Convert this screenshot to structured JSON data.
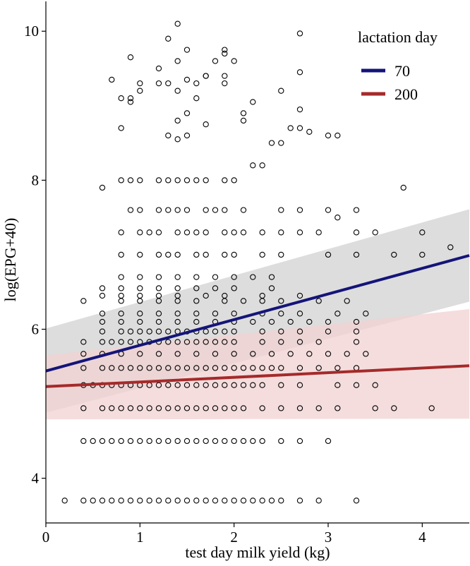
{
  "chart_data": {
    "type": "scatter",
    "title": "",
    "xlabel": "test day milk yield (kg)",
    "ylabel": "log(EPG+40)",
    "xlim": [
      0,
      4.5
    ],
    "ylim": [
      3.4,
      10.4
    ],
    "x_ticks": [
      0,
      1,
      2,
      3,
      4
    ],
    "y_ticks": [
      4,
      6,
      8,
      10
    ],
    "x_tick_labels": [
      "0",
      "1",
      "2",
      "3",
      "4"
    ],
    "y_tick_labels": [
      "4",
      "6",
      "8",
      "10"
    ],
    "legend": {
      "title": "lactation day",
      "placement": "top-right",
      "entries": [
        {
          "label": "70",
          "color": "#14147a"
        },
        {
          "label": "200",
          "color": "#a52a2a"
        }
      ]
    },
    "fits": [
      {
        "name": "70",
        "color": "#14147a",
        "band_color": "#d9d9d9",
        "x": [
          0,
          4.5
        ],
        "y": [
          5.44,
          6.99
        ],
        "lower": [
          4.88,
          6.37
        ],
        "upper": [
          6.01,
          7.61
        ]
      },
      {
        "name": "200",
        "color": "#a52a2a",
        "band_color": "#f2d1d1",
        "x": [
          0,
          4.5
        ],
        "y": [
          5.23,
          5.51
        ],
        "lower": [
          4.79,
          4.8
        ],
        "upper": [
          5.65,
          6.27
        ]
      }
    ],
    "points": {
      "x": [
        0.2,
        0.4,
        0.5,
        0.6,
        0.7,
        0.8,
        0.9,
        1.0,
        1.1,
        1.2,
        1.3,
        1.4,
        1.5,
        1.6,
        1.7,
        1.8,
        1.9,
        2.0,
        2.1,
        2.2,
        2.3,
        2.4,
        2.5,
        2.7,
        2.9,
        3.3,
        0.4,
        0.5,
        0.6,
        0.7,
        0.8,
        0.9,
        1.0,
        1.1,
        1.2,
        1.3,
        1.4,
        1.5,
        1.6,
        1.7,
        1.8,
        1.9,
        2.0,
        2.1,
        2.2,
        2.3,
        2.5,
        2.7,
        3.0,
        0.4,
        0.6,
        0.7,
        0.8,
        0.9,
        1.0,
        1.1,
        1.2,
        1.3,
        1.4,
        1.5,
        1.6,
        1.7,
        1.8,
        1.9,
        2.0,
        2.1,
        2.3,
        2.5,
        2.7,
        2.9,
        3.1,
        3.5,
        3.7,
        4.1,
        0.4,
        0.5,
        0.6,
        0.7,
        0.8,
        0.9,
        1.0,
        1.1,
        1.2,
        1.3,
        1.4,
        1.5,
        1.6,
        1.7,
        1.8,
        1.9,
        2.0,
        2.1,
        2.2,
        2.3,
        2.5,
        2.7,
        3.1,
        3.3,
        3.5,
        0.4,
        0.6,
        0.7,
        0.8,
        0.9,
        1.0,
        1.1,
        1.2,
        1.3,
        1.4,
        1.5,
        1.6,
        1.7,
        1.8,
        1.9,
        2.0,
        2.1,
        2.2,
        2.3,
        2.4,
        2.5,
        2.7,
        2.9,
        3.1,
        3.3,
        0.4,
        0.6,
        0.8,
        1.0,
        1.2,
        1.4,
        1.6,
        1.8,
        2.0,
        2.2,
        2.4,
        2.6,
        2.8,
        3.0,
        3.2,
        3.4,
        0.4,
        0.6,
        0.7,
        0.8,
        0.9,
        1.0,
        1.1,
        1.2,
        1.3,
        1.4,
        1.5,
        1.6,
        1.7,
        1.8,
        1.9,
        2.0,
        2.3,
        2.5,
        2.7,
        2.9,
        3.3,
        0.6,
        0.8,
        0.9,
        1.0,
        1.1,
        1.2,
        1.3,
        1.4,
        1.5,
        1.6,
        1.7,
        1.8,
        1.9,
        2.0,
        2.3,
        2.5,
        2.7,
        3.0,
        3.3,
        0.6,
        0.8,
        1.0,
        1.2,
        1.4,
        1.6,
        1.8,
        2.0,
        2.2,
        2.4,
        2.6,
        2.8,
        3.0,
        3.3,
        0.6,
        0.8,
        1.0,
        1.2,
        1.4,
        1.6,
        1.8,
        2.0,
        2.3,
        2.5,
        2.7,
        3.1,
        3.4,
        0.4,
        0.8,
        1.0,
        1.2,
        1.4,
        1.6,
        1.9,
        2.1,
        2.3,
        2.5,
        2.9,
        3.2,
        0.6,
        0.8,
        1.0,
        1.2,
        1.4,
        1.7,
        1.9,
        2.3,
        2.7,
        0.6,
        0.8,
        1.0,
        1.2,
        1.4,
        1.6,
        1.8,
        2.0,
        2.4,
        0.8,
        1.0,
        1.2,
        1.4,
        1.6,
        1.8,
        2.0,
        2.2,
        2.4,
        0.8,
        1.0,
        1.2,
        1.3,
        1.4,
        1.6,
        1.7,
        1.9,
        2.0,
        2.3,
        2.5,
        3.0,
        3.3,
        3.7,
        4.0,
        4.3,
        0.8,
        1.0,
        1.1,
        1.2,
        1.4,
        1.5,
        1.6,
        1.7,
        1.9,
        2.0,
        2.1,
        2.3,
        2.5,
        2.7,
        2.9,
        3.1,
        3.3,
        3.5,
        4.0,
        0.9,
        1.0,
        1.2,
        1.3,
        1.4,
        1.5,
        1.7,
        1.8,
        1.9,
        2.1,
        2.5,
        2.7,
        3.0,
        3.3,
        3.8,
        0.6,
        0.8,
        0.9,
        1.0,
        1.2,
        1.3,
        1.4,
        1.5,
        1.6,
        1.7,
        1.9,
        2.0,
        2.2,
        2.3,
        2.4,
        2.5,
        2.6,
        2.7,
        3.0,
        3.1,
        0.7,
        0.8,
        0.9,
        1.0,
        1.2,
        1.3,
        1.4,
        1.5,
        1.6,
        1.7,
        1.9,
        2.1,
        2.2,
        2.5,
        2.7,
        2.8,
        0.9,
        1.0,
        1.2,
        1.3,
        1.4,
        1.5,
        1.6,
        1.7,
        1.8,
        1.9,
        2.0,
        2.7,
        0.8,
        1.4,
        1.5,
        1.7,
        1.9,
        2.1,
        0.9,
        1.3,
        1.4,
        1.5,
        1.9,
        2.7,
        1.4
      ],
      "y": [
        3.7,
        3.7,
        3.7,
        3.7,
        3.7,
        3.7,
        3.7,
        3.7,
        3.7,
        3.7,
        3.7,
        3.7,
        3.7,
        3.7,
        3.7,
        3.7,
        3.7,
        3.7,
        3.7,
        3.7,
        3.7,
        3.7,
        3.7,
        3.7,
        3.7,
        3.7,
        4.5,
        4.5,
        4.5,
        4.5,
        4.5,
        4.5,
        4.5,
        4.5,
        4.5,
        4.5,
        4.5,
        4.5,
        4.5,
        4.5,
        4.5,
        4.5,
        4.5,
        4.5,
        4.5,
        4.5,
        4.5,
        4.5,
        4.5,
        4.94,
        4.94,
        4.94,
        4.94,
        4.94,
        4.94,
        4.94,
        4.94,
        4.94,
        4.94,
        4.94,
        4.94,
        4.94,
        4.94,
        4.94,
        4.94,
        4.94,
        4.94,
        4.94,
        4.94,
        4.94,
        4.94,
        4.94,
        4.94,
        4.94,
        5.25,
        5.25,
        5.25,
        5.25,
        5.25,
        5.25,
        5.25,
        5.25,
        5.25,
        5.25,
        5.25,
        5.25,
        5.25,
        5.25,
        5.25,
        5.25,
        5.25,
        5.25,
        5.25,
        5.25,
        5.25,
        5.25,
        5.25,
        5.25,
        5.25,
        5.48,
        5.48,
        5.48,
        5.48,
        5.48,
        5.48,
        5.48,
        5.48,
        5.48,
        5.48,
        5.48,
        5.48,
        5.48,
        5.48,
        5.48,
        5.48,
        5.48,
        5.48,
        5.48,
        5.48,
        5.48,
        5.48,
        5.48,
        5.48,
        5.48,
        5.67,
        5.67,
        5.67,
        5.67,
        5.67,
        5.67,
        5.67,
        5.67,
        5.67,
        5.67,
        5.67,
        5.67,
        5.67,
        5.67,
        5.67,
        5.67,
        5.83,
        5.83,
        5.83,
        5.83,
        5.83,
        5.83,
        5.83,
        5.83,
        5.83,
        5.83,
        5.83,
        5.83,
        5.83,
        5.83,
        5.83,
        5.83,
        5.83,
        5.83,
        5.83,
        5.83,
        5.83,
        5.97,
        5.97,
        5.97,
        5.97,
        5.97,
        5.97,
        5.97,
        5.97,
        5.97,
        5.97,
        5.97,
        5.97,
        5.97,
        5.97,
        5.97,
        5.97,
        5.97,
        5.97,
        5.97,
        6.1,
        6.1,
        6.1,
        6.1,
        6.1,
        6.1,
        6.1,
        6.1,
        6.1,
        6.1,
        6.1,
        6.1,
        6.1,
        6.1,
        6.21,
        6.21,
        6.21,
        6.21,
        6.21,
        6.21,
        6.21,
        6.21,
        6.21,
        6.21,
        6.21,
        6.21,
        6.21,
        6.38,
        6.38,
        6.38,
        6.38,
        6.38,
        6.38,
        6.38,
        6.38,
        6.38,
        6.38,
        6.38,
        6.38,
        6.45,
        6.45,
        6.45,
        6.45,
        6.45,
        6.45,
        6.45,
        6.45,
        6.45,
        6.55,
        6.55,
        6.55,
        6.55,
        6.55,
        6.55,
        6.55,
        6.55,
        6.55,
        6.7,
        6.7,
        6.7,
        6.7,
        6.7,
        6.7,
        6.7,
        6.7,
        6.7,
        7.0,
        7.0,
        7.0,
        7.0,
        7.0,
        7.0,
        7.0,
        7.0,
        7.0,
        7.0,
        7.0,
        7.0,
        7.0,
        7.0,
        7.0,
        7.1,
        7.3,
        7.3,
        7.3,
        7.3,
        7.3,
        7.3,
        7.3,
        7.3,
        7.3,
        7.3,
        7.3,
        7.3,
        7.3,
        7.3,
        7.3,
        7.5,
        7.3,
        7.3,
        7.3,
        7.6,
        7.6,
        7.6,
        7.6,
        7.6,
        7.6,
        7.6,
        7.6,
        7.6,
        7.6,
        7.6,
        7.6,
        7.6,
        7.6,
        7.9,
        7.9,
        8.0,
        8.0,
        8.0,
        8.0,
        8.0,
        8.0,
        8.0,
        8.0,
        8.0,
        8.0,
        8.0,
        8.2,
        8.2,
        8.5,
        8.5,
        8.7,
        8.7,
        8.6,
        8.6,
        9.35,
        9.1,
        9.1,
        9.2,
        9.3,
        9.3,
        9.2,
        9.35,
        9.3,
        9.4,
        9.3,
        8.9,
        9.05,
        9.2,
        8.95,
        8.65,
        9.65,
        9.3,
        9.5,
        9.9,
        9.6,
        9.75,
        9.1,
        9.4,
        9.6,
        9.75,
        9.6,
        9.45,
        8.7,
        8.8,
        8.9,
        8.75,
        9.4,
        8.8,
        9.05,
        8.6,
        8.55,
        8.6,
        9.7,
        9.97,
        10.1
      ]
    }
  }
}
